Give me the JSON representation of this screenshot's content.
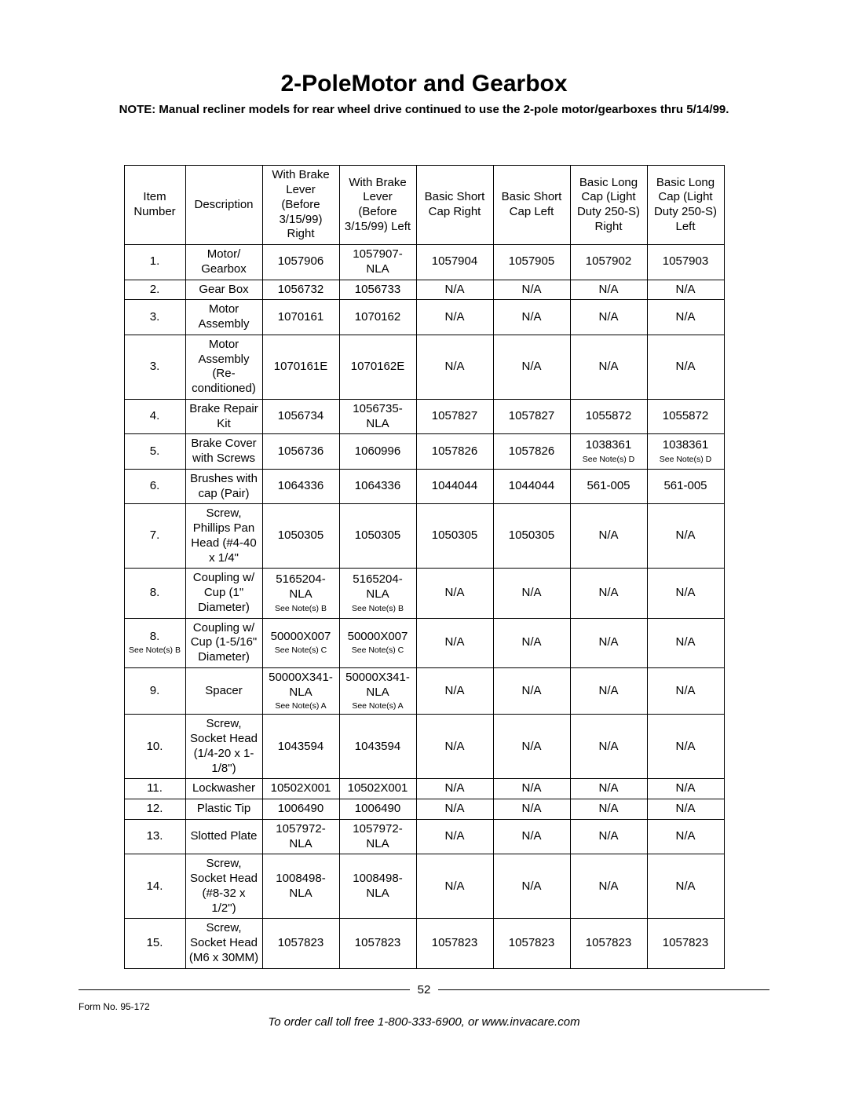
{
  "title": "2-PoleMotor and Gearbox",
  "note": "NOTE:  Manual recliner models for rear wheel drive continued to use the 2-pole motor/gearboxes thru 5/14/99.",
  "page_number": "52",
  "form_no": "Form No. 95-172",
  "order_line": "To order call toll free 1-800-333-6900, or www.invacare.com",
  "headers": [
    "Item Number",
    "Description",
    "With Brake Lever (Before 3/15/99) Right",
    "With Brake Lever (Before 3/15/99) Left",
    "Basic Short Cap Right",
    "Basic Short Cap Left",
    "Basic Long Cap (Light Duty 250-S) Right",
    "Basic Long Cap (Light Duty 250-S) Left"
  ],
  "rows": [
    {
      "item": {
        "v": "1."
      },
      "desc": {
        "v": "Motor/ Gearbox"
      },
      "c": [
        {
          "v": "1057906"
        },
        {
          "v": "1057907-NLA"
        },
        {
          "v": "1057904"
        },
        {
          "v": "1057905"
        },
        {
          "v": "1057902"
        },
        {
          "v": "1057903"
        }
      ]
    },
    {
      "item": {
        "v": "2."
      },
      "desc": {
        "v": "Gear Box"
      },
      "c": [
        {
          "v": "1056732"
        },
        {
          "v": "1056733"
        },
        {
          "v": "N/A"
        },
        {
          "v": "N/A"
        },
        {
          "v": "N/A"
        },
        {
          "v": "N/A"
        }
      ]
    },
    {
      "item": {
        "v": "3."
      },
      "desc": {
        "v": "Motor Assembly"
      },
      "c": [
        {
          "v": "1070161"
        },
        {
          "v": "1070162"
        },
        {
          "v": "N/A"
        },
        {
          "v": "N/A"
        },
        {
          "v": "N/A"
        },
        {
          "v": "N/A"
        }
      ]
    },
    {
      "item": {
        "v": "3."
      },
      "desc": {
        "v": "Motor Assembly (Re-conditioned)"
      },
      "c": [
        {
          "v": "1070161E"
        },
        {
          "v": "1070162E"
        },
        {
          "v": "N/A"
        },
        {
          "v": "N/A"
        },
        {
          "v": "N/A"
        },
        {
          "v": "N/A"
        }
      ]
    },
    {
      "item": {
        "v": "4."
      },
      "desc": {
        "v": "Brake Repair Kit"
      },
      "c": [
        {
          "v": "1056734"
        },
        {
          "v": "1056735-NLA"
        },
        {
          "v": "1057827"
        },
        {
          "v": "1057827"
        },
        {
          "v": "1055872"
        },
        {
          "v": "1055872"
        }
      ]
    },
    {
      "item": {
        "v": "5."
      },
      "desc": {
        "v": "Brake Cover with Screws"
      },
      "c": [
        {
          "v": "1056736"
        },
        {
          "v": "1060996"
        },
        {
          "v": "1057826"
        },
        {
          "v": "1057826"
        },
        {
          "v": "1038361",
          "n": "See Note(s) D"
        },
        {
          "v": "1038361",
          "n": "See Note(s) D"
        }
      ]
    },
    {
      "item": {
        "v": "6."
      },
      "desc": {
        "v": "Brushes with cap (Pair)"
      },
      "c": [
        {
          "v": "1064336"
        },
        {
          "v": "1064336"
        },
        {
          "v": "1044044"
        },
        {
          "v": "1044044"
        },
        {
          "v": "561-005"
        },
        {
          "v": "561-005"
        }
      ]
    },
    {
      "item": {
        "v": "7."
      },
      "desc": {
        "v": "Screw, Phillips Pan Head (#4-40 x 1/4\""
      },
      "c": [
        {
          "v": "1050305"
        },
        {
          "v": "1050305"
        },
        {
          "v": "1050305"
        },
        {
          "v": "1050305"
        },
        {
          "v": "N/A"
        },
        {
          "v": "N/A"
        }
      ]
    },
    {
      "item": {
        "v": "8."
      },
      "desc": {
        "v": "Coupling w/ Cup (1\" Diameter)"
      },
      "c": [
        {
          "v": "5165204-NLA",
          "n": "See Note(s) B"
        },
        {
          "v": "5165204-NLA",
          "n": "See Note(s) B"
        },
        {
          "v": "N/A"
        },
        {
          "v": "N/A"
        },
        {
          "v": "N/A"
        },
        {
          "v": "N/A"
        }
      ]
    },
    {
      "item": {
        "v": "8.",
        "n": "See Note(s) B"
      },
      "desc": {
        "v": "Coupling w/ Cup (1-5/16\" Diameter)"
      },
      "c": [
        {
          "v": "50000X007",
          "n": "See Note(s) C"
        },
        {
          "v": "50000X007",
          "n": "See Note(s) C"
        },
        {
          "v": "N/A"
        },
        {
          "v": "N/A"
        },
        {
          "v": "N/A"
        },
        {
          "v": "N/A"
        }
      ]
    },
    {
      "item": {
        "v": "9."
      },
      "desc": {
        "v": "Spacer"
      },
      "c": [
        {
          "v": "50000X341-NLA",
          "n": "See Note(s) A"
        },
        {
          "v": "50000X341-NLA",
          "n": "See Note(s) A"
        },
        {
          "v": "N/A"
        },
        {
          "v": "N/A"
        },
        {
          "v": "N/A"
        },
        {
          "v": "N/A"
        }
      ]
    },
    {
      "item": {
        "v": "10."
      },
      "desc": {
        "v": "Screw, Socket Head (1/4-20 x 1-1/8\")"
      },
      "c": [
        {
          "v": "1043594"
        },
        {
          "v": "1043594"
        },
        {
          "v": "N/A"
        },
        {
          "v": "N/A"
        },
        {
          "v": "N/A"
        },
        {
          "v": "N/A"
        }
      ]
    },
    {
      "item": {
        "v": "11."
      },
      "desc": {
        "v": "Lockwasher"
      },
      "c": [
        {
          "v": "10502X001"
        },
        {
          "v": "10502X001"
        },
        {
          "v": "N/A"
        },
        {
          "v": "N/A"
        },
        {
          "v": "N/A"
        },
        {
          "v": "N/A"
        }
      ]
    },
    {
      "item": {
        "v": "12."
      },
      "desc": {
        "v": "Plastic Tip"
      },
      "c": [
        {
          "v": "1006490"
        },
        {
          "v": "1006490"
        },
        {
          "v": "N/A"
        },
        {
          "v": "N/A"
        },
        {
          "v": "N/A"
        },
        {
          "v": "N/A"
        }
      ]
    },
    {
      "item": {
        "v": "13."
      },
      "desc": {
        "v": "Slotted Plate"
      },
      "c": [
        {
          "v": "1057972-NLA"
        },
        {
          "v": "1057972-NLA"
        },
        {
          "v": "N/A"
        },
        {
          "v": "N/A"
        },
        {
          "v": "N/A"
        },
        {
          "v": "N/A"
        }
      ]
    },
    {
      "item": {
        "v": "14."
      },
      "desc": {
        "v": "Screw, Socket Head (#8-32 x 1/2\")"
      },
      "c": [
        {
          "v": "1008498-NLA"
        },
        {
          "v": "1008498-NLA"
        },
        {
          "v": "N/A"
        },
        {
          "v": "N/A"
        },
        {
          "v": "N/A"
        },
        {
          "v": "N/A"
        }
      ]
    },
    {
      "item": {
        "v": "15."
      },
      "desc": {
        "v": "Screw, Socket Head (M6 x 30MM)"
      },
      "c": [
        {
          "v": "1057823"
        },
        {
          "v": "1057823"
        },
        {
          "v": "1057823"
        },
        {
          "v": "1057823"
        },
        {
          "v": "1057823"
        },
        {
          "v": "1057823"
        }
      ]
    }
  ]
}
